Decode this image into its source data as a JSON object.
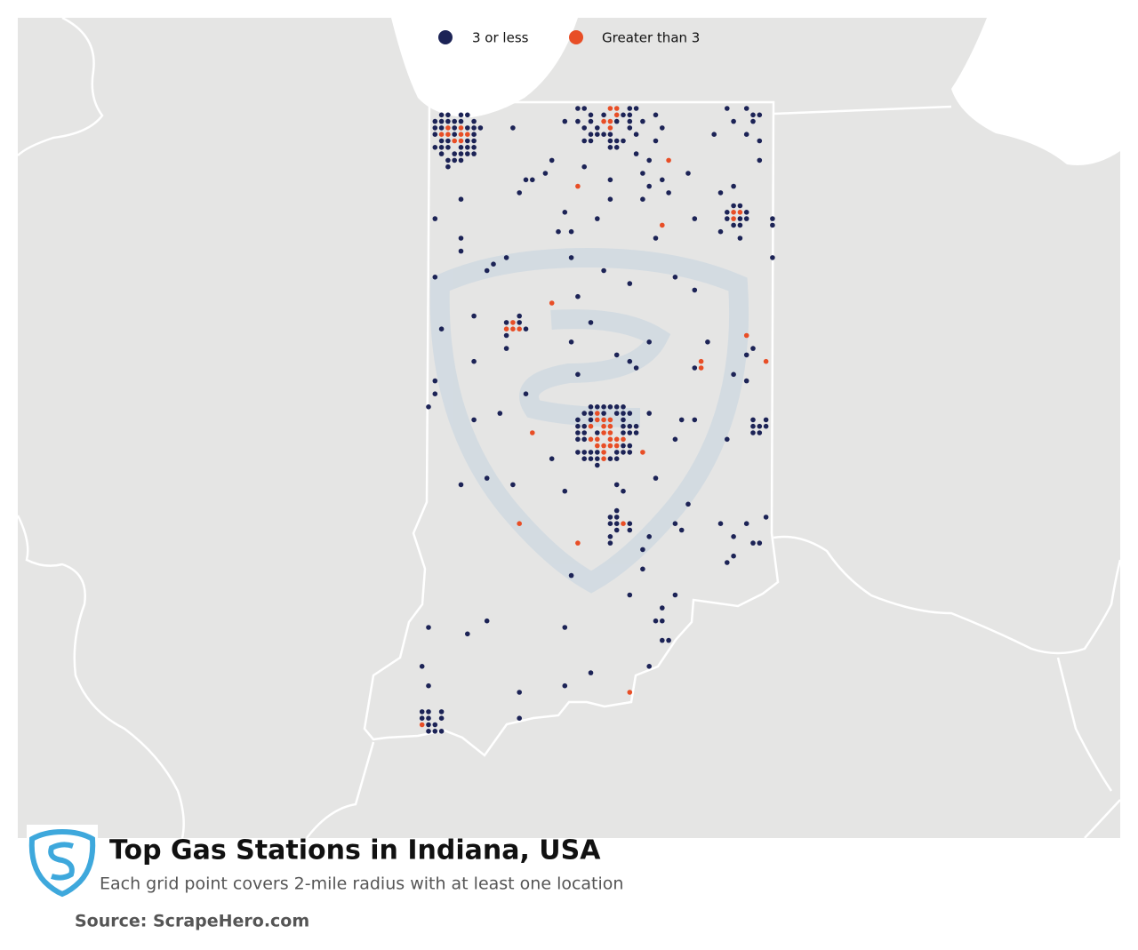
{
  "legend": [
    {
      "label": "3 or less",
      "color": "#1c2356"
    },
    {
      "label": "Greater than 3",
      "color": "#e84e26"
    }
  ],
  "title": "Top Gas Stations in Indiana, USA",
  "subtitle": "Each grid point covers 2-mile radius with at least one location",
  "source": "Source: ScrapeHero.com"
}
